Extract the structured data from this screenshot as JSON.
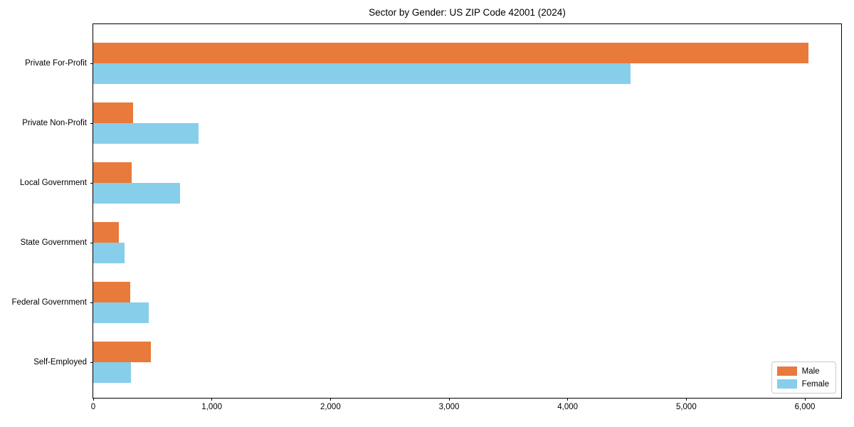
{
  "figure": {
    "title": "Sector by Gender: US ZIP Code 42001 (2024)"
  },
  "chart_data": {
    "type": "bar",
    "orientation": "horizontal",
    "title": "Sector by Gender: US ZIP Code 42001 (2024)",
    "categories": [
      "Private For-Profit",
      "Private Non-Profit",
      "Local Government",
      "State Government",
      "Federal Government",
      "Self-Employed"
    ],
    "series": [
      {
        "name": "Male",
        "color": "#e87a3c",
        "values": [
          6030,
          335,
          325,
          215,
          310,
          485
        ]
      },
      {
        "name": "Female",
        "color": "#87ceeb",
        "values": [
          4530,
          885,
          730,
          265,
          470,
          315
        ]
      }
    ],
    "xlabel": "",
    "ylabel": "",
    "xlim": [
      0,
      6318
    ],
    "xticks": [
      0,
      1000,
      2000,
      3000,
      4000,
      5000,
      6000
    ],
    "xtick_labels": [
      "0",
      "1,000",
      "2,000",
      "3,000",
      "4,000",
      "5,000",
      "6,000"
    ],
    "grid": false,
    "legend": {
      "position": "lower-right"
    }
  }
}
